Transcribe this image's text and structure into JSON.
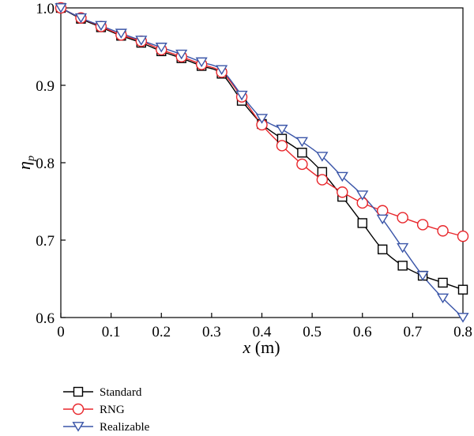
{
  "chart_data": {
    "type": "line",
    "xlabel_var": "x",
    "xlabel_unit": " (m)",
    "ylabel_var": "η",
    "ylabel_sub": "p",
    "xlim": [
      0,
      0.8
    ],
    "ylim": [
      0.6,
      1.0
    ],
    "xticks": [
      {
        "value": 0,
        "label": "0"
      },
      {
        "value": 0.1,
        "label": "0.1"
      },
      {
        "value": 0.2,
        "label": "0.2"
      },
      {
        "value": 0.3,
        "label": "0.3"
      },
      {
        "value": 0.4,
        "label": "0.4"
      },
      {
        "value": 0.5,
        "label": "0.5"
      },
      {
        "value": 0.6,
        "label": "0.6"
      },
      {
        "value": 0.7,
        "label": "0.7"
      },
      {
        "value": 0.8,
        "label": "0.8"
      }
    ],
    "yticks": [
      {
        "value": 0.6,
        "label": "0.6"
      },
      {
        "value": 0.7,
        "label": "0.7"
      },
      {
        "value": 0.8,
        "label": "0.8"
      },
      {
        "value": 0.9,
        "label": "0.9"
      },
      {
        "value": 1.0,
        "label": "1.0"
      }
    ],
    "grid": false,
    "legend_position": "bottom-left",
    "series": [
      {
        "name": "Standard",
        "color": "#000000",
        "marker": "square",
        "x": [
          0,
          0.04,
          0.08,
          0.12,
          0.16,
          0.2,
          0.24,
          0.28,
          0.32,
          0.36,
          0.4,
          0.44,
          0.48,
          0.52,
          0.56,
          0.6,
          0.64,
          0.68,
          0.72,
          0.76,
          0.8
        ],
        "y": [
          1.0,
          0.986,
          0.975,
          0.964,
          0.955,
          0.944,
          0.935,
          0.925,
          0.915,
          0.88,
          0.85,
          0.831,
          0.813,
          0.788,
          0.756,
          0.722,
          0.688,
          0.667,
          0.654,
          0.645,
          0.636
        ]
      },
      {
        "name": "RNG",
        "color": "#e8262b",
        "marker": "circle",
        "x": [
          0,
          0.04,
          0.08,
          0.12,
          0.16,
          0.2,
          0.24,
          0.28,
          0.32,
          0.36,
          0.4,
          0.44,
          0.48,
          0.52,
          0.56,
          0.6,
          0.64,
          0.68,
          0.72,
          0.76,
          0.8
        ],
        "y": [
          1.0,
          0.987,
          0.976,
          0.965,
          0.957,
          0.946,
          0.937,
          0.927,
          0.917,
          0.885,
          0.849,
          0.822,
          0.798,
          0.778,
          0.762,
          0.748,
          0.738,
          0.729,
          0.72,
          0.712,
          0.705
        ]
      },
      {
        "name": "Realizable",
        "color": "#3a55a8",
        "marker": "triangle-down",
        "x": [
          0,
          0.04,
          0.08,
          0.12,
          0.16,
          0.2,
          0.24,
          0.28,
          0.32,
          0.36,
          0.4,
          0.44,
          0.48,
          0.52,
          0.56,
          0.6,
          0.64,
          0.68,
          0.72,
          0.76,
          0.8
        ],
        "y": [
          1.0,
          0.987,
          0.977,
          0.967,
          0.958,
          0.949,
          0.94,
          0.93,
          0.92,
          0.887,
          0.857,
          0.843,
          0.827,
          0.808,
          0.782,
          0.758,
          0.727,
          0.69,
          0.654,
          0.625,
          0.6
        ]
      }
    ]
  }
}
